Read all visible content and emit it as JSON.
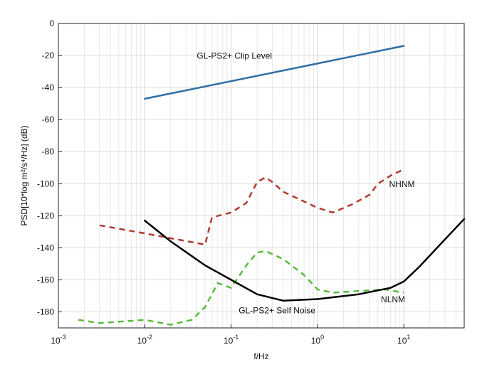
{
  "chart_data": {
    "type": "line",
    "xlabel": "f/Hz",
    "ylabel": "PSD[10*log m²/s⁴/Hz] (dB)",
    "xscale": "log",
    "xlim": [
      0.001,
      50
    ],
    "ylim": [
      -190,
      0
    ],
    "grid": true,
    "x_ticks": [
      {
        "value": 0.001,
        "base": "10",
        "exp": "-3"
      },
      {
        "value": 0.01,
        "base": "10",
        "exp": "-2"
      },
      {
        "value": 0.1,
        "base": "10",
        "exp": "-1"
      },
      {
        "value": 1,
        "base": "10",
        "exp": "0"
      },
      {
        "value": 10,
        "base": "10",
        "exp": "1"
      }
    ],
    "y_ticks": [
      {
        "value": 0,
        "label": "0"
      },
      {
        "value": -20,
        "label": "-20"
      },
      {
        "value": -40,
        "label": "-40"
      },
      {
        "value": -60,
        "label": "-60"
      },
      {
        "value": -80,
        "label": "-80"
      },
      {
        "value": -100,
        "label": "-100"
      },
      {
        "value": -120,
        "label": "-120"
      },
      {
        "value": -140,
        "label": "-140"
      },
      {
        "value": -160,
        "label": "-160"
      },
      {
        "value": -180,
        "label": "-180"
      }
    ],
    "series": [
      {
        "name": "GL-PS2+ Clip Level",
        "color": "#2f6ea5",
        "dash": "solid",
        "x": [
          0.01,
          10
        ],
        "y": [
          -47,
          -14
        ]
      },
      {
        "name": "NHNM",
        "color": "#b03a2e",
        "dash": "dashed",
        "x": [
          0.003,
          0.01,
          0.05,
          0.06,
          0.1,
          0.15,
          0.2,
          0.25,
          0.3,
          0.4,
          1,
          1.5,
          2.5,
          4,
          5,
          7,
          10
        ],
        "y": [
          -126,
          -131,
          -138,
          -121,
          -118,
          -112,
          -99,
          -96,
          -99,
          -105,
          -115,
          -118,
          -113,
          -107,
          -100,
          -95,
          -91
        ]
      },
      {
        "name": "NLNM",
        "color": "#5aba3c",
        "dash": "dashed",
        "x": [
          0.0017,
          0.003,
          0.01,
          0.02,
          0.035,
          0.05,
          0.07,
          0.1,
          0.15,
          0.2,
          0.25,
          0.4,
          0.7,
          1,
          1.5,
          3,
          6,
          10
        ],
        "y": [
          -185,
          -187,
          -185,
          -188,
          -185,
          -177,
          -162,
          -165,
          -151,
          -143,
          -142,
          -147,
          -157,
          -166,
          -168,
          -167,
          -166,
          -168
        ]
      },
      {
        "name": "GL-PS2+ Self Noise",
        "color": "#000000",
        "dash": "solid",
        "x": [
          0.01,
          0.02,
          0.05,
          0.1,
          0.2,
          0.4,
          1,
          3,
          7,
          10,
          15,
          50
        ],
        "y": [
          -123,
          -136,
          -151,
          -160,
          -169,
          -173,
          -172,
          -169,
          -165,
          -161,
          -152,
          -122
        ]
      }
    ],
    "annotations": [
      {
        "text": "GL-PS2+ Clip Level",
        "x": 0.04,
        "y": -22,
        "anchor": "start"
      },
      {
        "text": "NHNM",
        "x": 9.5,
        "y": -102,
        "anchor": "middle"
      },
      {
        "text": "NLNM",
        "x": 7.5,
        "y": -174,
        "anchor": "middle"
      },
      {
        "text": "GL-PS2+ Self Noise",
        "x": 0.34,
        "y": -181,
        "anchor": "middle"
      }
    ]
  }
}
